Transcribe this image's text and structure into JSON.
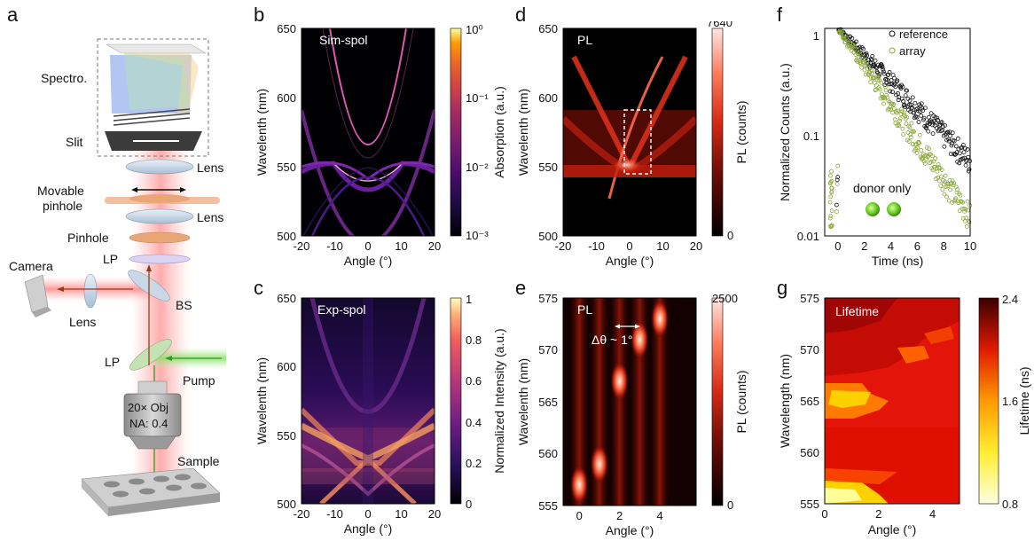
{
  "panels": {
    "a": {
      "letter": "a"
    },
    "b": {
      "letter": "b",
      "label": "Sim-spol",
      "xlabel": "Angle (°)",
      "ylabel": "Wavelenth (nm)",
      "xticks": [
        "-20",
        "-10",
        "0",
        "10",
        "20"
      ],
      "yticks": [
        "650",
        "600",
        "550",
        "500"
      ],
      "cbar_label": "Absorption (a.u.)",
      "cbar_ticks": [
        "10⁰",
        "10⁻¹",
        "10⁻²",
        "10⁻³"
      ]
    },
    "c": {
      "letter": "c",
      "label": "Exp-spol",
      "xlabel": "Angle (°)",
      "ylabel": "Wavelenth (nm)",
      "xticks": [
        "-20",
        "-10",
        "0",
        "10",
        "20"
      ],
      "yticks": [
        "650",
        "600",
        "550",
        "500"
      ],
      "cbar_label": "Normalized Intensity (a.u.)",
      "cbar_ticks": [
        "1",
        "0.8",
        "0.6",
        "0.4",
        "0.2",
        "0"
      ]
    },
    "d": {
      "letter": "d",
      "label": "PL",
      "xlabel": "Angle (°)",
      "ylabel": "Wavelenth (nm)",
      "xticks": [
        "-20",
        "-10",
        "0",
        "10",
        "20"
      ],
      "yticks": [
        "650",
        "600",
        "550",
        "500"
      ],
      "cbar_label": "PL (counts)",
      "cbar_ticks": [
        "7640",
        "0"
      ]
    },
    "e": {
      "letter": "e",
      "label": "PL",
      "annotation": "Δθ ~ 1°",
      "xlabel": "Angle (°)",
      "ylabel": "Wavelenth (nm)",
      "xticks": [
        "0",
        "2",
        "4"
      ],
      "yticks": [
        "575",
        "570",
        "565",
        "560",
        "555"
      ],
      "cbar_label": "PL (counts)",
      "cbar_ticks": [
        "2500",
        "0"
      ]
    },
    "f": {
      "letter": "f",
      "xlabel": "Time (ns)",
      "ylabel": "Normalized Counts (a.u.)",
      "xticks": [
        "0",
        "2",
        "4",
        "6",
        "8",
        "10"
      ],
      "yticks": [
        "1",
        "0.1",
        "0.01"
      ],
      "legend": [
        "reference",
        "array"
      ],
      "annotation": "donor only"
    },
    "g": {
      "letter": "g",
      "label": "Lifetime",
      "xlabel": "Angle (°)",
      "ylabel": "Wavelength (nm)",
      "xticks": [
        "0",
        "2",
        "4"
      ],
      "yticks": [
        "575",
        "570",
        "565",
        "560",
        "555"
      ],
      "cbar_label": "Lifetime (ns)",
      "cbar_ticks": [
        "2.4",
        "1.6",
        "0.8"
      ]
    }
  },
  "setup_labels": {
    "spectro": "Spectro.",
    "slit": "Slit",
    "lens1": "Lens",
    "movable": "Movable",
    "pinhole_word": "pinhole",
    "lens2": "Lens",
    "pinhole": "Pinhole",
    "lp1": "LP",
    "camera": "Camera",
    "bs": "BS",
    "lens3": "Lens",
    "lp2": "LP",
    "pump": "Pump",
    "obj1": "20× Obj",
    "obj2": "NA: 0.4",
    "sample": "Sample"
  },
  "colors": {
    "inferno_dark": "#000004",
    "hot_dark": "#000000",
    "green": "#8aa93a",
    "reference": "#111111"
  },
  "chart_data": [
    {
      "type": "heatmap",
      "panel": "b",
      "title": "Sim-spol",
      "xlabel": "Angle (°)",
      "ylabel": "Wavelenth (nm)",
      "xlim": [
        -20,
        20
      ],
      "ylim": [
        500,
        650
      ],
      "colorscale": "log",
      "clim": [
        0.001,
        1
      ]
    },
    {
      "type": "heatmap",
      "panel": "c",
      "title": "Exp-spol",
      "xlabel": "Angle (°)",
      "ylabel": "Wavelenth (nm)",
      "xlim": [
        -20,
        20
      ],
      "ylim": [
        500,
        650
      ],
      "clim": [
        0,
        1
      ]
    },
    {
      "type": "heatmap",
      "panel": "d",
      "title": "PL",
      "xlabel": "Angle (°)",
      "ylabel": "Wavelenth (nm)",
      "xlim": [
        -20,
        20
      ],
      "ylim": [
        500,
        650
      ],
      "clim": [
        0,
        7640
      ]
    },
    {
      "type": "heatmap",
      "panel": "e",
      "title": "PL",
      "xlabel": "Angle (°)",
      "ylabel": "Wavelenth (nm)",
      "xlim": [
        -0.8,
        5.8
      ],
      "ylim": [
        555,
        575
      ],
      "clim": [
        0,
        2500
      ],
      "peaks": [
        {
          "x": 0,
          "y": 557
        },
        {
          "x": 1,
          "y": 559
        },
        {
          "x": 2,
          "y": 567
        },
        {
          "x": 3,
          "y": 571
        },
        {
          "x": 4,
          "y": 573
        }
      ]
    },
    {
      "type": "scatter",
      "panel": "f",
      "xlabel": "Time (ns)",
      "ylabel": "Normalized Counts (a.u.)",
      "xlim": [
        -1,
        10
      ],
      "ylim": [
        0.01,
        1
      ],
      "yscale": "log",
      "series": [
        {
          "name": "reference",
          "tau": 3.4
        },
        {
          "name": "array",
          "tau": 2.4
        }
      ]
    },
    {
      "type": "heatmap",
      "panel": "g",
      "title": "Lifetime",
      "xlabel": "Angle (°)",
      "ylabel": "Wavelength (nm)",
      "xlim": [
        0,
        5
      ],
      "ylim": [
        555,
        575
      ],
      "clim": [
        0.8,
        2.4
      ]
    }
  ]
}
